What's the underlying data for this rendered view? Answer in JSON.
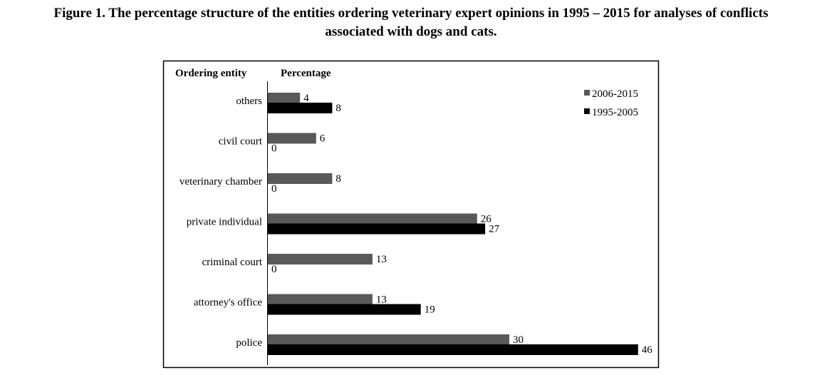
{
  "caption": {
    "line1": "Figure 1. The percentage structure of the entities ordering veterinary expert opinions in 1995 – 2015 for analyses of conflicts",
    "line2": "associated with dogs and cats."
  },
  "chart_data": {
    "type": "bar",
    "orientation": "horizontal",
    "headers": {
      "category": "Ordering entity",
      "value": "Percentage"
    },
    "categories": [
      "others",
      "civil court",
      "veterinary chamber",
      "private individual",
      "criminal court",
      "attorney's office",
      "police"
    ],
    "series": [
      {
        "name": "2006-2015",
        "values": [
          4,
          6,
          8,
          26,
          13,
          13,
          30
        ]
      },
      {
        "name": "1995-2005",
        "values": [
          8,
          0,
          0,
          27,
          0,
          19,
          46
        ]
      }
    ],
    "legend_position": "top-right",
    "colors": {
      "2006-2015": "#595959",
      "1995-2005": "#000000"
    },
    "grid": false
  }
}
